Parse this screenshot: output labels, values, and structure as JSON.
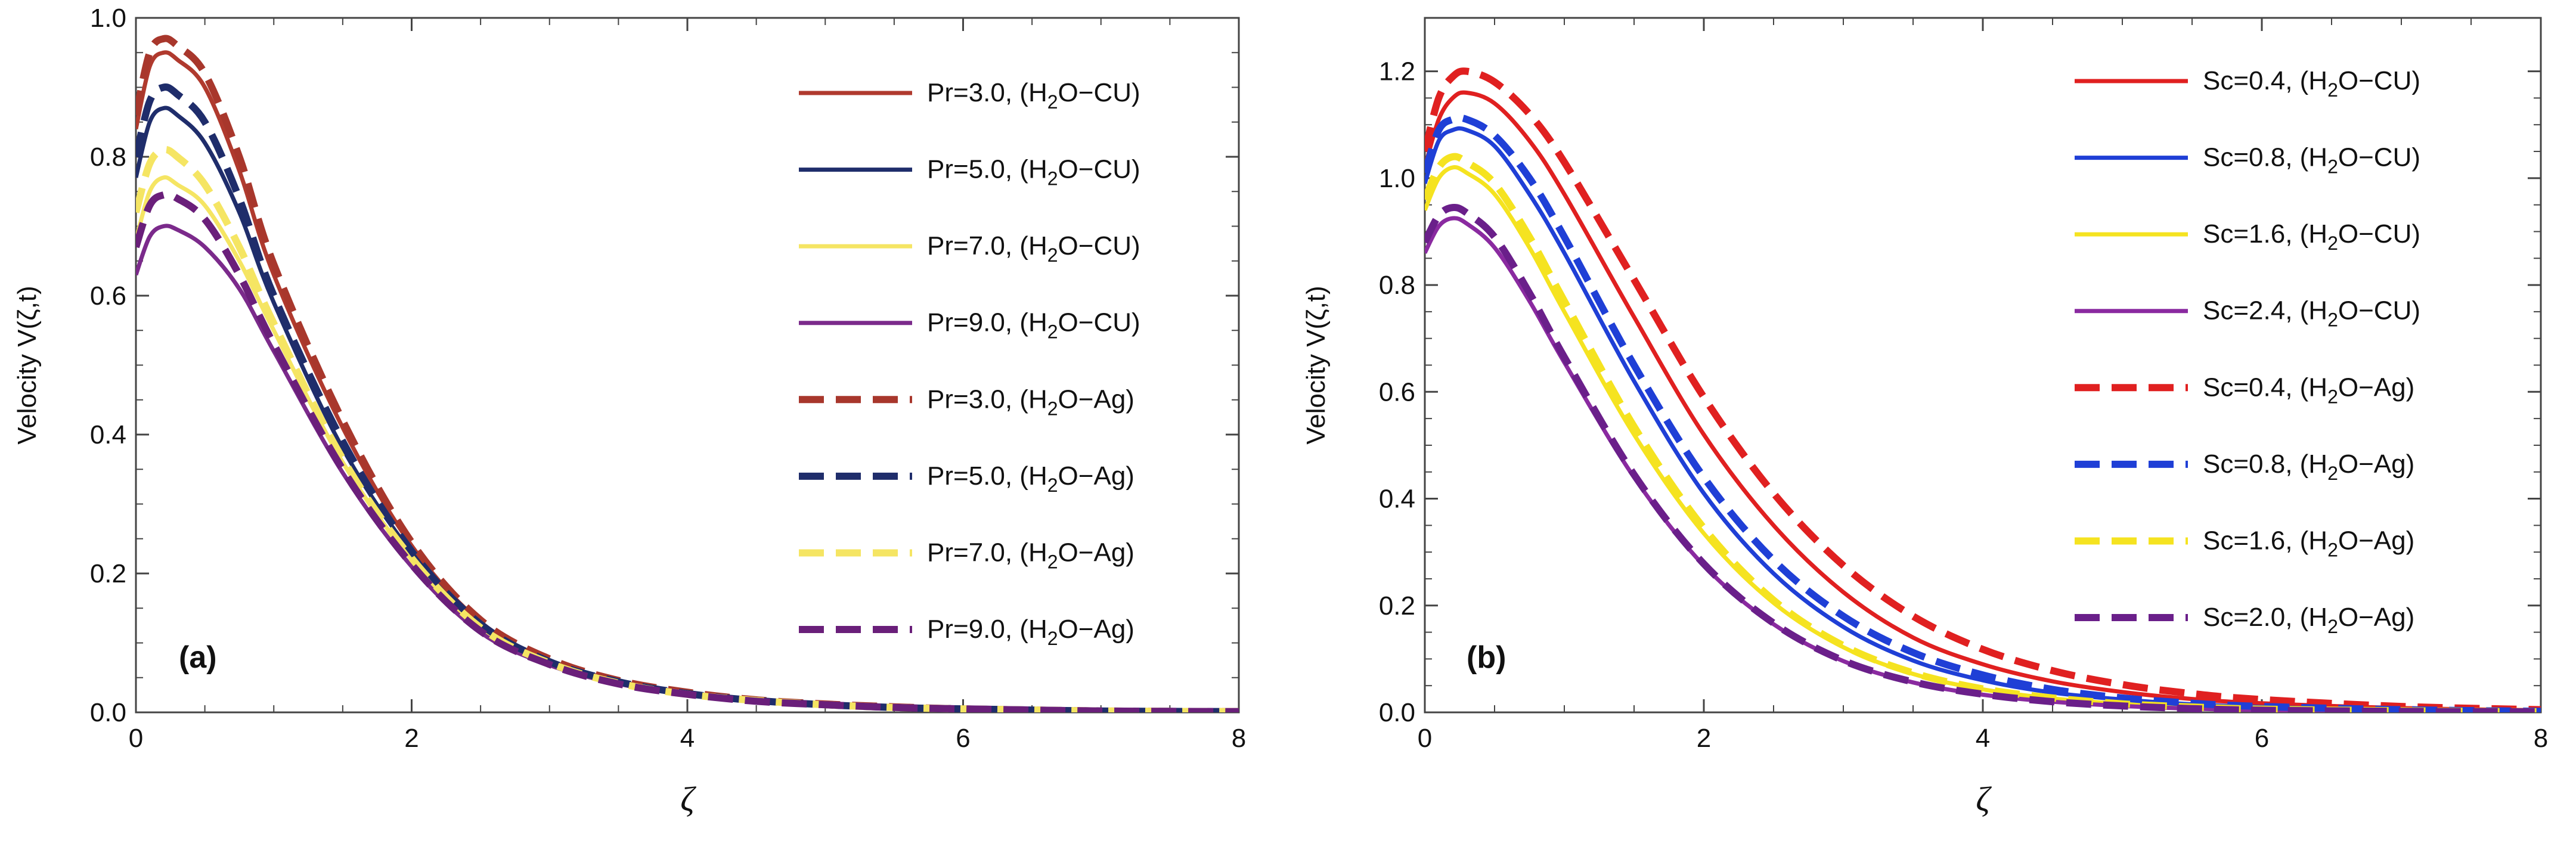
{
  "chart_data": [
    {
      "type": "line",
      "panel_label": "(a)",
      "xlabel": "ζ",
      "ylabel": "Velocity V(ζ,t)",
      "xlim": [
        0,
        8
      ],
      "ylim": [
        0,
        1.0
      ],
      "xticks": [
        0,
        2,
        4,
        6,
        8
      ],
      "yticks": [
        0.0,
        0.2,
        0.4,
        0.6,
        0.8,
        1.0
      ],
      "tick_decimals": 1,
      "legend_position": "top-right",
      "grid": false,
      "x": [
        0,
        0.1,
        0.2,
        0.3,
        0.5,
        0.75,
        1.0,
        1.5,
        2.0,
        2.5,
        3.0,
        3.5,
        4.0,
        4.5,
        5.0,
        5.5,
        6.0,
        7.0,
        8.0
      ],
      "series": [
        {
          "name": "Pr=3.0, (H₂O−CU)",
          "style": "solid",
          "color": "#b03a2e",
          "values": [
            0.84,
            0.93,
            0.95,
            0.94,
            0.9,
            0.78,
            0.63,
            0.41,
            0.24,
            0.13,
            0.075,
            0.045,
            0.028,
            0.018,
            0.012,
            0.008,
            0.005,
            0.002,
            0.001
          ]
        },
        {
          "name": "Pr=5.0, (H₂O−CU)",
          "style": "solid",
          "color": "#1f2d6b",
          "values": [
            0.77,
            0.85,
            0.87,
            0.86,
            0.82,
            0.72,
            0.59,
            0.38,
            0.23,
            0.125,
            0.072,
            0.043,
            0.027,
            0.017,
            0.011,
            0.007,
            0.005,
            0.002,
            0.001
          ]
        },
        {
          "name": "Pr=7.0, (H₂O−CU)",
          "style": "solid",
          "color": "#f5e563",
          "values": [
            0.68,
            0.75,
            0.77,
            0.76,
            0.73,
            0.65,
            0.55,
            0.36,
            0.22,
            0.12,
            0.07,
            0.042,
            0.026,
            0.017,
            0.011,
            0.007,
            0.005,
            0.002,
            0.001
          ]
        },
        {
          "name": "Pr=9.0, (H₂O−CU)",
          "style": "solid",
          "color": "#7b2a8b",
          "values": [
            0.63,
            0.685,
            0.7,
            0.695,
            0.67,
            0.61,
            0.52,
            0.345,
            0.21,
            0.115,
            0.068,
            0.041,
            0.026,
            0.016,
            0.011,
            0.007,
            0.005,
            0.002,
            0.001
          ]
        },
        {
          "name": "Pr=3.0, (H₂O−Ag)",
          "style": "dashed",
          "color": "#a8372c",
          "values": [
            0.86,
            0.95,
            0.97,
            0.96,
            0.92,
            0.8,
            0.645,
            0.42,
            0.245,
            0.133,
            0.077,
            0.046,
            0.029,
            0.018,
            0.012,
            0.008,
            0.005,
            0.002,
            0.001
          ]
        },
        {
          "name": "Pr=5.0, (H₂O−Ag)",
          "style": "dashed",
          "color": "#1f2d6b",
          "values": [
            0.8,
            0.88,
            0.9,
            0.89,
            0.85,
            0.74,
            0.6,
            0.39,
            0.232,
            0.127,
            0.073,
            0.044,
            0.027,
            0.017,
            0.011,
            0.007,
            0.005,
            0.002,
            0.001
          ]
        },
        {
          "name": "Pr=7.0, (H₂O−Ag)",
          "style": "dashed",
          "color": "#f5e563",
          "values": [
            0.72,
            0.79,
            0.81,
            0.8,
            0.76,
            0.67,
            0.56,
            0.365,
            0.222,
            0.122,
            0.071,
            0.042,
            0.026,
            0.017,
            0.011,
            0.007,
            0.005,
            0.002,
            0.001
          ]
        },
        {
          "name": "Pr=9.0, (H₂O−Ag)",
          "style": "dashed",
          "color": "#6a1f7a",
          "values": [
            0.67,
            0.73,
            0.745,
            0.74,
            0.71,
            0.63,
            0.53,
            0.35,
            0.213,
            0.117,
            0.069,
            0.041,
            0.026,
            0.016,
            0.011,
            0.007,
            0.005,
            0.002,
            0.001
          ]
        }
      ]
    },
    {
      "type": "line",
      "panel_label": "(b)",
      "xlabel": "ζ",
      "ylabel": "Velocity V(ζ,t)",
      "xlim": [
        0,
        8
      ],
      "ylim": [
        0,
        1.3
      ],
      "xticks": [
        0,
        2,
        4,
        6,
        8
      ],
      "yticks": [
        0.0,
        0.2,
        0.4,
        0.6,
        0.8,
        1.0,
        1.2
      ],
      "tick_decimals": 1,
      "legend_position": "top-right",
      "grid": false,
      "x": [
        0,
        0.1,
        0.2,
        0.3,
        0.5,
        0.75,
        1.0,
        1.5,
        2.0,
        2.5,
        3.0,
        3.5,
        4.0,
        4.5,
        5.0,
        5.5,
        6.0,
        7.0,
        8.0
      ],
      "series": [
        {
          "name": "Sc=0.4, (H₂O−CU)",
          "style": "solid",
          "color": "#e02020",
          "values": [
            1.02,
            1.11,
            1.15,
            1.16,
            1.14,
            1.07,
            0.97,
            0.74,
            0.52,
            0.35,
            0.225,
            0.14,
            0.09,
            0.058,
            0.038,
            0.025,
            0.017,
            0.008,
            0.004
          ]
        },
        {
          "name": "Sc=0.8, (H₂O−CU)",
          "style": "solid",
          "color": "#1f3fd6",
          "values": [
            0.99,
            1.07,
            1.09,
            1.09,
            1.06,
            0.97,
            0.86,
            0.62,
            0.41,
            0.26,
            0.16,
            0.097,
            0.06,
            0.037,
            0.024,
            0.015,
            0.01,
            0.004,
            0.002
          ]
        },
        {
          "name": "Sc=1.6, (H₂O−CU)",
          "style": "solid",
          "color": "#f5e320",
          "values": [
            0.94,
            1.0,
            1.02,
            1.01,
            0.97,
            0.87,
            0.75,
            0.52,
            0.335,
            0.205,
            0.122,
            0.072,
            0.043,
            0.026,
            0.016,
            0.01,
            0.006,
            0.003,
            0.001
          ]
        },
        {
          "name": "Sc=2.4, (H₂O−CU)",
          "style": "solid",
          "color": "#8a2aa0",
          "values": [
            0.86,
            0.91,
            0.925,
            0.915,
            0.87,
            0.77,
            0.655,
            0.44,
            0.275,
            0.165,
            0.096,
            0.056,
            0.033,
            0.02,
            0.012,
            0.007,
            0.004,
            0.002,
            0.001
          ]
        },
        {
          "name": "Sc=0.4, (H₂O−Ag)",
          "style": "dashed",
          "color": "#e02020",
          "values": [
            1.05,
            1.15,
            1.19,
            1.2,
            1.18,
            1.12,
            1.03,
            0.81,
            0.59,
            0.41,
            0.275,
            0.18,
            0.118,
            0.078,
            0.052,
            0.035,
            0.024,
            0.011,
            0.005
          ]
        },
        {
          "name": "Sc=0.8, (H₂O−Ag)",
          "style": "dashed",
          "color": "#1f3fd6",
          "values": [
            1.01,
            1.09,
            1.11,
            1.11,
            1.08,
            1.0,
            0.89,
            0.65,
            0.44,
            0.285,
            0.18,
            0.112,
            0.07,
            0.043,
            0.027,
            0.017,
            0.011,
            0.005,
            0.002
          ]
        },
        {
          "name": "Sc=1.6, (H₂O−Ag)",
          "style": "dashed",
          "color": "#f5e320",
          "values": [
            0.96,
            1.02,
            1.04,
            1.03,
            0.99,
            0.89,
            0.77,
            0.535,
            0.345,
            0.21,
            0.125,
            0.074,
            0.044,
            0.027,
            0.016,
            0.01,
            0.006,
            0.003,
            0.001
          ]
        },
        {
          "name": "Sc=2.0, (H₂O−Ag)",
          "style": "dashed",
          "color": "#6a1f8a",
          "values": [
            0.88,
            0.93,
            0.945,
            0.935,
            0.89,
            0.785,
            0.665,
            0.445,
            0.278,
            0.167,
            0.097,
            0.057,
            0.034,
            0.02,
            0.012,
            0.007,
            0.004,
            0.002,
            0.001
          ]
        }
      ]
    }
  ]
}
